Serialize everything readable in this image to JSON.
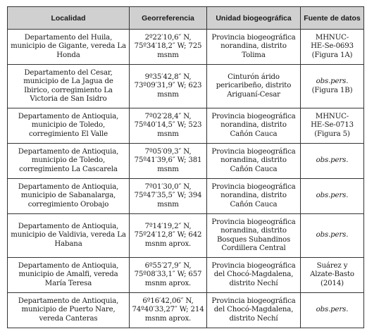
{
  "header": {
    "localidad": "Localidad",
    "georef": "Georreferencia",
    "unidad": "Unidad biogeográfica",
    "fuente": "Fuente de datos"
  },
  "rows": [
    {
      "localidad": "Departamento del Huila, municipio de Gigante, vereda La Honda",
      "georef": "2º22′10,6″ N, 75º34′18,2″ W; 725 msnm",
      "unidad": "Provincia biogeográfica norandina, distrito Tolima",
      "fuente": "MHNUC-HE-Se-0693 (Figura 1A)"
    },
    {
      "localidad": "Departamento del Cesar, municipio de La Jagua de Ibirico, corregimiento La Victoria de San Isidro",
      "georef": "9º35′42,8″ N, 73º09′31,9″ W; 623 msnm",
      "unidad": "Cinturón árido pericaribeño, distrito Ariguaní-Cesar",
      "fuente": "obs.pers. (Figura 1B)"
    },
    {
      "localidad": "Departamento de Antioquia, municipio de Toledo, corregimiento El Valle",
      "georef": "7º02′28,4″ N, 75º40′14,5″ W; 523 msnm",
      "unidad": "Provincia biogeográfica norandina, distrito Cañón Cauca",
      "fuente": "MHNUC-HE-Se-0713 (Figura 5)"
    },
    {
      "localidad": "Departamento de Antioquia, municipio de Toledo, corregimiento La Cascarela",
      "georef": "7º05′09,3″ N, 75º41′39,6″ W; 381 msnm",
      "unidad": "Provincia biogeográfica norandina, distrito Cañón Cauca",
      "fuente": "obs.pers."
    },
    {
      "localidad": "Departamento de Antioquia, municipio de Sabanalarga, corregimiento Orobajo",
      "georef": "7º01′30,0″ N, 75º47′35,5″ W; 394 msnm",
      "unidad": "Provincia biogeográfica norandina, distrito Cañón Cauca",
      "fuente": "obs.pers."
    },
    {
      "localidad": "Departamento de Antioquia, municipio de Valdivia, vereda La Habana",
      "georef": "7º14′19,2″ N, 75º24′12,8″ W; 642 msnm aprox.",
      "unidad": "Provincia biogeográfica norandina, distrito Bosques Subandinos Cordillera Central",
      "fuente": "obs.pers."
    },
    {
      "localidad": "Departamento de Antioquia, municipio de Amalfi, vereda María Teresa",
      "georef": "6º55′27,9″ N, 75º08′33,1″ W; 657 msnm aprox.",
      "unidad": "Provincia biogeográfica del Chocó-Magdalena, distrito Nechí",
      "fuente": "Suárez y Alzate-Basto (2014)"
    },
    {
      "localidad": "Departamento de Antioquia, municipio de Puerto Nare, vereda Canteras",
      "georef": "6º16′42,06″ N, 74º40′33,27″ W; 214 msnm aprox.",
      "unidad": "Provincia biogeográfica del Chocó-Magdalena, distrito Nechí",
      "fuente": "obs.pers."
    }
  ]
}
